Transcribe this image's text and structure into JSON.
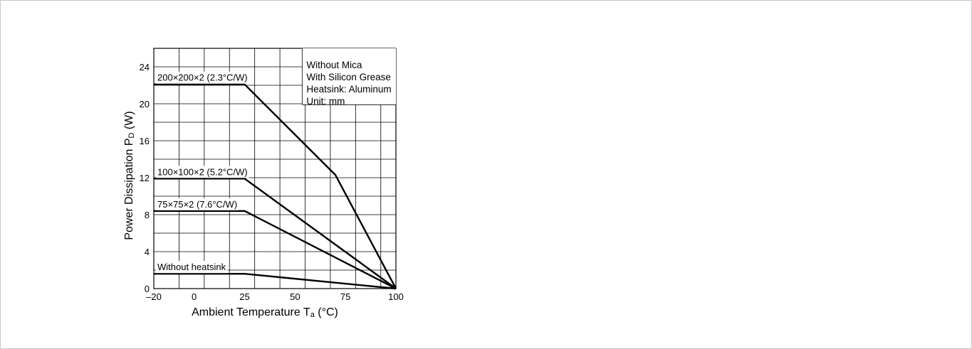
{
  "chart_data": {
    "type": "line",
    "title": "",
    "xlabel": "Ambient Temperature Ta (°C)",
    "xlabel_parts": {
      "main": "Ambient Temperature T",
      "sub": "a",
      "unit": " (°C)"
    },
    "ylabel": "Power Dissipation PD (W)",
    "ylabel_parts": {
      "main": "Power Dissipation P",
      "sub": "D",
      "unit": " (W)"
    },
    "xlim": [
      -20,
      100
    ],
    "ylim": [
      0,
      26
    ],
    "x_ticks": [
      -20,
      0,
      25,
      50,
      75,
      100
    ],
    "x_tick_labels": [
      "–20",
      "0",
      "25",
      "50",
      "75",
      "100"
    ],
    "y_ticks": [
      0,
      4,
      8,
      12,
      16,
      20,
      24
    ],
    "y_tick_labels": [
      "0",
      "4",
      "8",
      "12",
      "16",
      "20",
      "24"
    ],
    "grid": true,
    "annotations": [
      "Without Mica",
      "With Silicon Grease",
      "Heatsink: Aluminum",
      "Unit: mm"
    ],
    "series": [
      {
        "name": "200×200×2 (2.3°C/W)",
        "x": [
          -20,
          25,
          70,
          100
        ],
        "y": [
          22.1,
          22.1,
          12.3,
          0
        ]
      },
      {
        "name": "100×100×2 (5.2°C/W)",
        "x": [
          -20,
          25,
          100
        ],
        "y": [
          11.9,
          11.9,
          0
        ]
      },
      {
        "name": "75×75×2 (7.6°C/W)",
        "x": [
          -20,
          25,
          100
        ],
        "y": [
          8.4,
          8.4,
          0
        ]
      },
      {
        "name": "Without heatsink",
        "x": [
          -20,
          25,
          100
        ],
        "y": [
          1.6,
          1.6,
          0
        ]
      }
    ]
  }
}
